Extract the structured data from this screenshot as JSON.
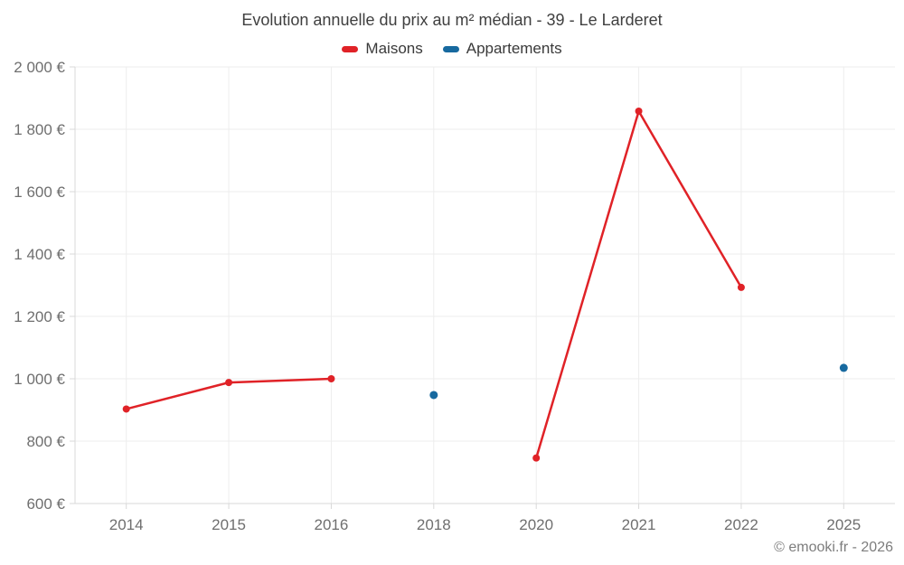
{
  "title": "Evolution annuelle du prix au m² médian - 39 - Le Larderet",
  "footer": "© emooki.fr - 2026",
  "colors": {
    "maisons": "#e02227",
    "appartements": "#17699f",
    "gridline": "#ededed",
    "axis": "#d8d8d8",
    "tick_label": "#6f6f6f"
  },
  "chart_data": {
    "type": "line",
    "title": "Evolution annuelle du prix au m² médian - 39 - Le Larderet",
    "categories": [
      "2014",
      "2015",
      "2016",
      "2018",
      "2020",
      "2021",
      "2022",
      "2025"
    ],
    "series": [
      {
        "name": "Maisons",
        "color": "#e02227",
        "marker_radius": 4,
        "values": [
          903,
          988,
          1000,
          null,
          746,
          1858,
          1293,
          null
        ]
      },
      {
        "name": "Appartements",
        "color": "#17699f",
        "marker_radius": 4.5,
        "values": [
          null,
          null,
          null,
          948,
          null,
          null,
          null,
          1035
        ]
      }
    ],
    "ylim": [
      600,
      2000
    ],
    "yticks": [
      {
        "value": 600,
        "label": "600 €"
      },
      {
        "value": 800,
        "label": "800 €"
      },
      {
        "value": 1000,
        "label": "1 000 €"
      },
      {
        "value": 1200,
        "label": "1 200 €"
      },
      {
        "value": 1400,
        "label": "1 400 €"
      },
      {
        "value": 1600,
        "label": "1 600 €"
      },
      {
        "value": 1800,
        "label": "1 800 €"
      },
      {
        "value": 2000,
        "label": "2 000 €"
      }
    ],
    "ylabel": "",
    "xlabel": "",
    "grid": true,
    "legend_position": "top",
    "line_breaks_on_missing": true
  }
}
